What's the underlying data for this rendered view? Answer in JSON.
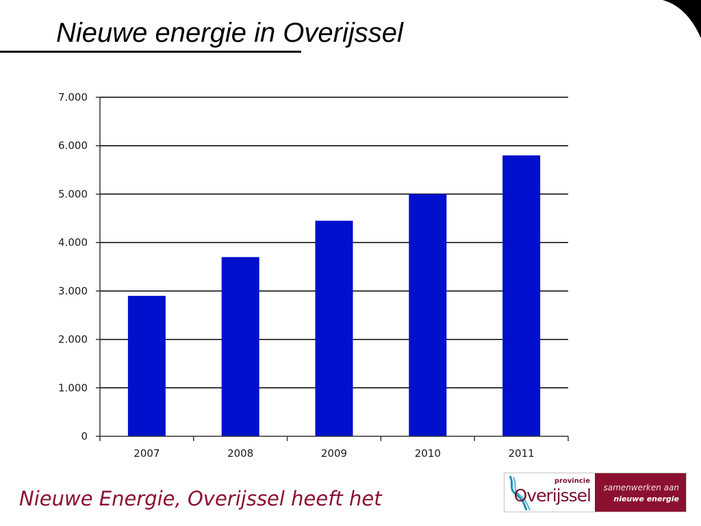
{
  "slide": {
    "title": "Nieuwe energie in Overijssel",
    "footer_text": "Nieuwe Energie, Overijssel heeft het"
  },
  "logo": {
    "icon": "river-icon",
    "provincie": "provincie",
    "name": "Overijssel",
    "tagline_1": "samenwerken aan",
    "tagline_2": "nieuwe energie"
  },
  "colors": {
    "bar": "#0010cc",
    "gridline": "#000000",
    "footer_text": "#8b1030",
    "logo_panel": "#8b1030",
    "corner_shape": "#000000"
  },
  "chart_data": {
    "type": "bar",
    "categories": [
      "2007",
      "2008",
      "2009",
      "2010",
      "2011"
    ],
    "values": [
      2900,
      3700,
      4450,
      5000,
      5800
    ],
    "title": "",
    "xlabel": "",
    "ylabel": "",
    "ylim": [
      0,
      7000
    ],
    "y_ticks": [
      0,
      1000,
      2000,
      3000,
      4000,
      5000,
      6000,
      7000
    ],
    "y_tick_labels": [
      "0",
      "1.000",
      "2.000",
      "3.000",
      "4.000",
      "5.000",
      "6.000",
      "7.000"
    ],
    "grid": true,
    "legend": "none"
  }
}
